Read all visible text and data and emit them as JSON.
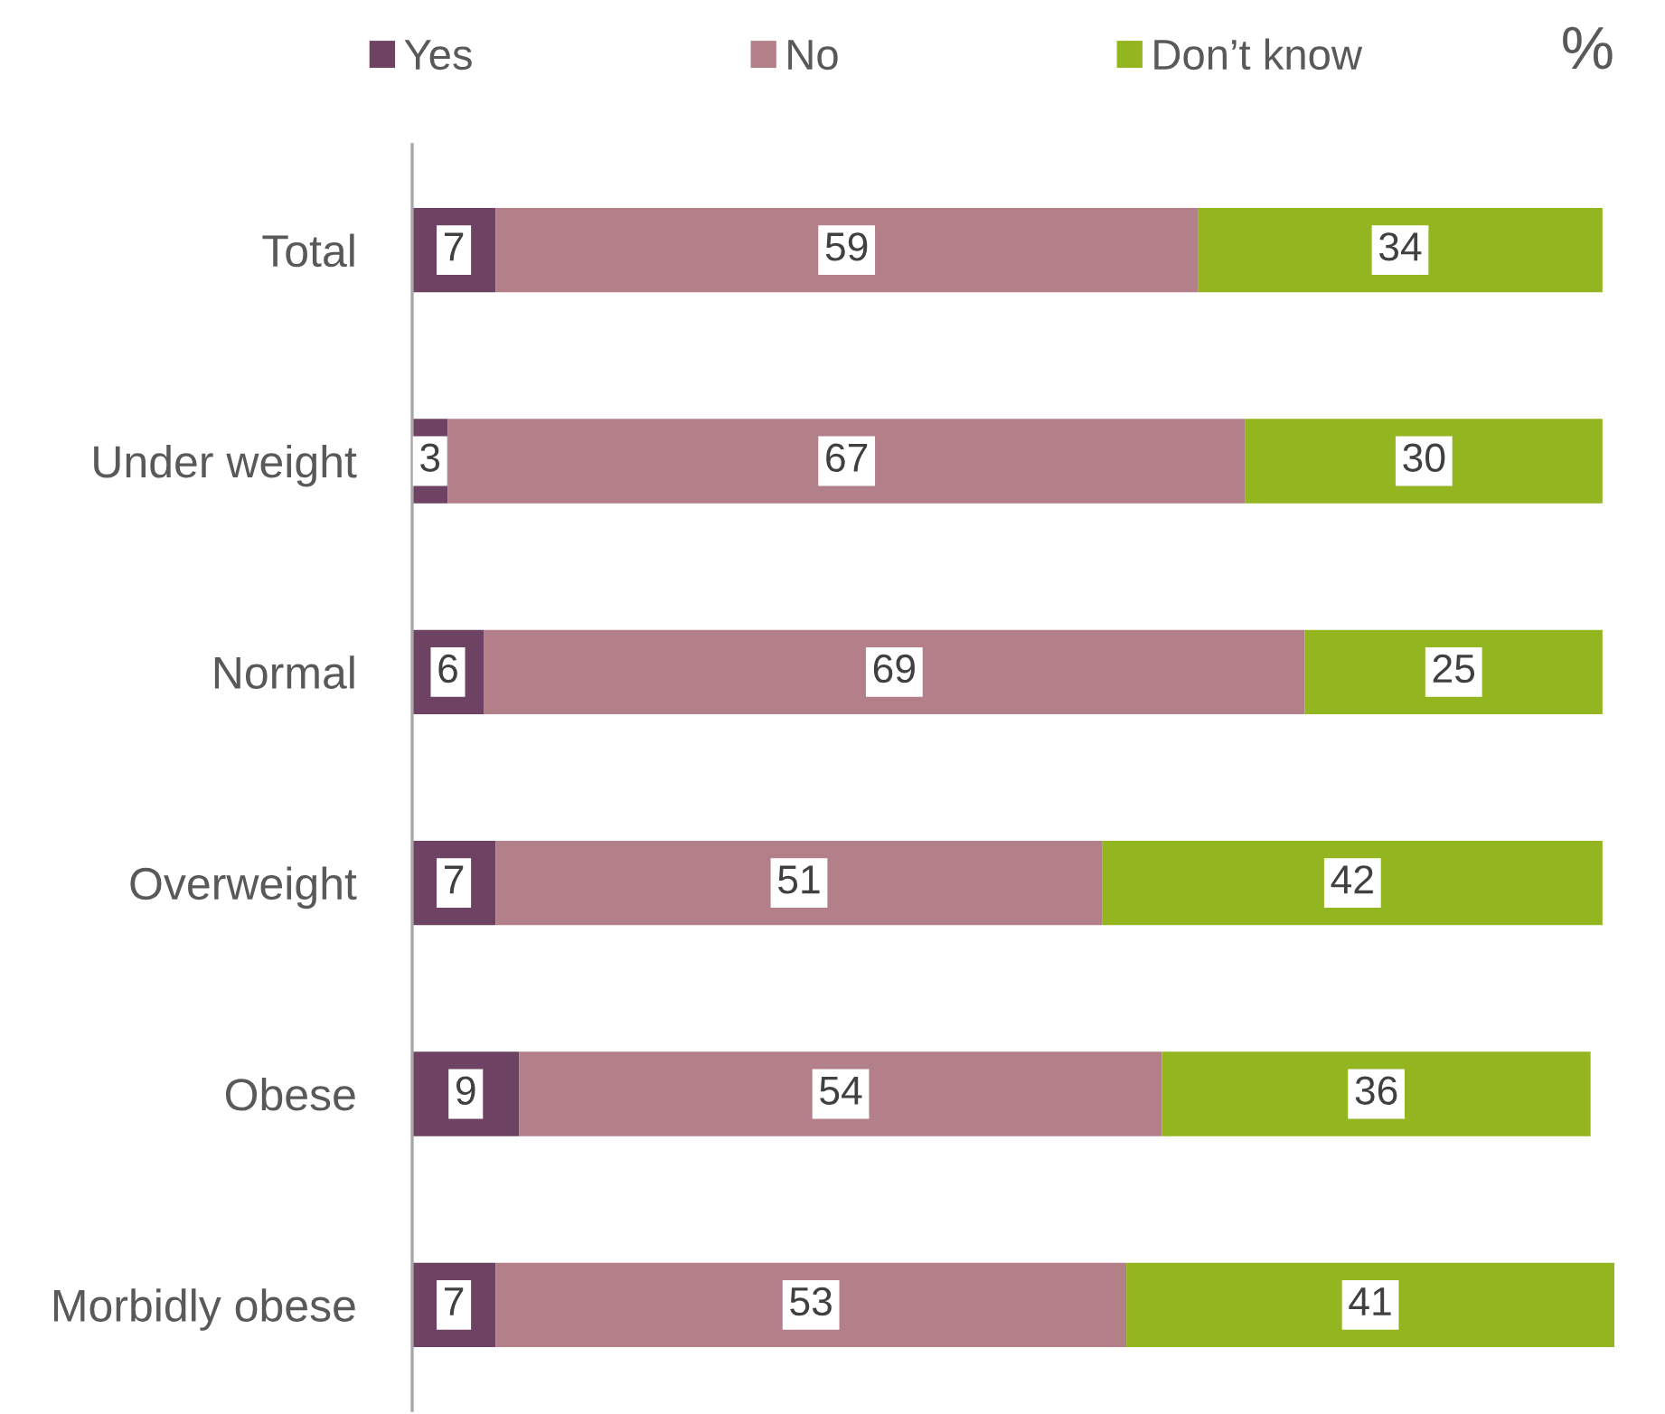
{
  "chart_data": {
    "type": "bar",
    "orientation": "horizontal",
    "stacked": true,
    "xlabel": "%",
    "categories": [
      "Total",
      "Under weight",
      "Normal",
      "Overweight",
      "Obese",
      "Morbidly obese"
    ],
    "series": [
      {
        "name": "Yes",
        "color": "#6e4262",
        "values": [
          7,
          3,
          6,
          7,
          9,
          7
        ]
      },
      {
        "name": "No",
        "color": "#b3808a",
        "values": [
          59,
          67,
          69,
          51,
          54,
          53
        ]
      },
      {
        "name": "Don’t know",
        "color": "#92b520",
        "values": [
          34,
          30,
          25,
          42,
          36,
          41
        ]
      }
    ],
    "xlim": [
      0,
      101
    ],
    "tick_labels": "y",
    "data_labels": true,
    "legend": "top"
  }
}
